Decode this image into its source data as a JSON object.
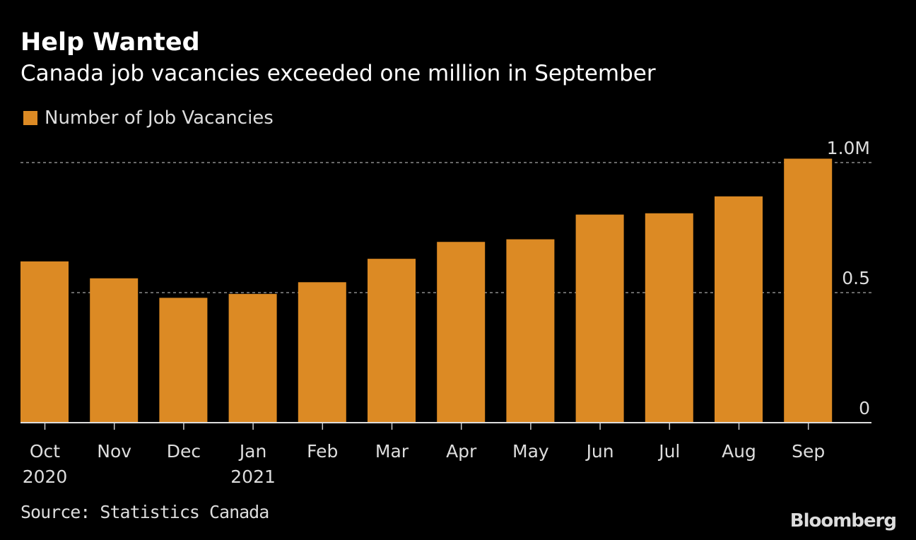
{
  "chart_data": {
    "type": "bar",
    "title": "Help Wanted",
    "subtitle": "Canada job vacancies exceeded one million in September",
    "categories": [
      "Oct",
      "Nov",
      "Dec",
      "Jan",
      "Feb",
      "Mar",
      "Apr",
      "May",
      "Jun",
      "Jul",
      "Aug",
      "Sep"
    ],
    "category_sublabels": [
      "2020",
      "",
      "",
      "2021",
      "",
      "",
      "",
      "",
      "",
      "",
      "",
      ""
    ],
    "series": [
      {
        "name": "Number of Job Vacancies",
        "color": "#dc8a24",
        "values": [
          0.62,
          0.555,
          0.48,
          0.495,
          0.54,
          0.63,
          0.695,
          0.705,
          0.8,
          0.805,
          0.87,
          1.015
        ]
      }
    ],
    "y_unit": "M",
    "ylim": [
      0,
      1.0
    ],
    "yticks": [
      0,
      0.5,
      1.0
    ],
    "ytick_labels": [
      "0",
      "0.5",
      "1.0M"
    ],
    "y_axis_position": "right",
    "grid": "dashed horizontal",
    "legend_position": "top-left",
    "source": "Source: Statistics Canada",
    "logo": "Bloomberg"
  }
}
